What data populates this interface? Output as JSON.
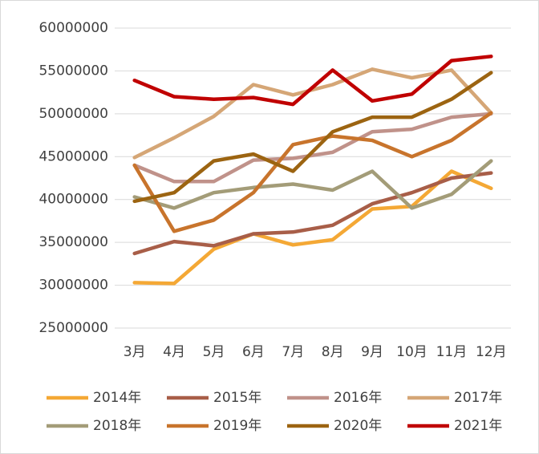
{
  "chart_data": {
    "type": "line",
    "categories": [
      "3月",
      "4月",
      "5月",
      "6月",
      "7月",
      "8月",
      "9月",
      "10月",
      "11月",
      "12月"
    ],
    "ylim": [
      25000000,
      60000000
    ],
    "yticks": [
      25000000,
      30000000,
      35000000,
      40000000,
      45000000,
      50000000,
      55000000,
      60000000
    ],
    "grid": true,
    "legend": "bottom",
    "series": [
      {
        "name": "2014年",
        "color": "#f4a835",
        "values": [
          30300000,
          30200000,
          34200000,
          36000000,
          34700000,
          35300000,
          38900000,
          39200000,
          43300000,
          41300000
        ]
      },
      {
        "name": "2015年",
        "color": "#a85e48",
        "values": [
          33700000,
          35100000,
          34600000,
          36000000,
          36200000,
          37000000,
          39500000,
          40800000,
          42500000,
          43100000
        ]
      },
      {
        "name": "2016年",
        "color": "#c0928a",
        "values": [
          44000000,
          42100000,
          42100000,
          44600000,
          44800000,
          45500000,
          47900000,
          48200000,
          49600000,
          50000000
        ]
      },
      {
        "name": "2017年",
        "color": "#d5a676",
        "values": [
          44900000,
          47200000,
          49700000,
          53400000,
          52200000,
          53400000,
          55200000,
          54200000,
          55100000,
          50100000
        ]
      },
      {
        "name": "2018年",
        "color": "#a39c78",
        "values": [
          40300000,
          39000000,
          40800000,
          41400000,
          41800000,
          41100000,
          43300000,
          39000000,
          40600000,
          44500000
        ]
      },
      {
        "name": "2019年",
        "color": "#c8742c",
        "values": [
          44000000,
          36300000,
          37600000,
          40800000,
          46400000,
          47400000,
          46900000,
          45000000,
          46900000,
          50100000
        ]
      },
      {
        "name": "2020年",
        "color": "#9c6411",
        "values": [
          39800000,
          40800000,
          44500000,
          45300000,
          43300000,
          47900000,
          49600000,
          49600000,
          51700000,
          54800000
        ]
      },
      {
        "name": "2021年",
        "color": "#c00000",
        "values": [
          53900000,
          52000000,
          51700000,
          51900000,
          51100000,
          55100000,
          51500000,
          52300000,
          56200000,
          56700000
        ]
      }
    ]
  }
}
